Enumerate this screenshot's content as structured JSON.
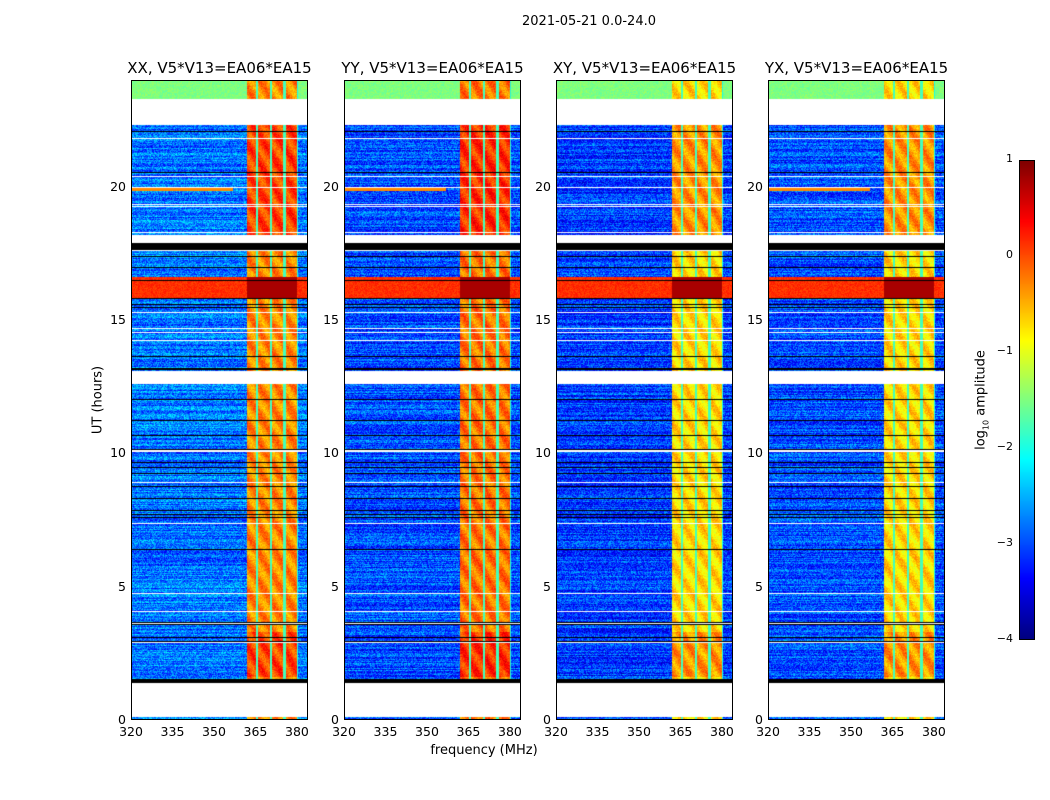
{
  "chart_data": {
    "type": "heatmap",
    "title": "2021-05-21 0.0-24.0",
    "xlabel": "frequency (MHz)",
    "ylabel": "UT (hours)",
    "xlim": [
      320,
      384
    ],
    "ylim": [
      0,
      24
    ],
    "xticks": [
      "320",
      "335",
      "350",
      "365",
      "380"
    ],
    "xtick_values": [
      320,
      335,
      350,
      365,
      380
    ],
    "yticks": [
      "0",
      "5",
      "10",
      "15",
      "20"
    ],
    "ytick_values": [
      0,
      5,
      10,
      15,
      20
    ],
    "colormap": "jet",
    "colorbar": {
      "label_main": "log",
      "label_sub": "10",
      "label_rest": " amplitude",
      "vmin": -4,
      "vmax": 1,
      "ticks": [
        "1",
        "0",
        "−1",
        "−2",
        "−3",
        "−4"
      ],
      "tick_values": [
        1,
        0,
        -1,
        -2,
        -3,
        -4
      ]
    },
    "panels": [
      {
        "title": "XX, V5*V13=EA06*EA15",
        "band_level": 0.0,
        "bg_level": -2.8
      },
      {
        "title": "YY, V5*V13=EA06*EA15",
        "band_level": 0.1,
        "bg_level": -3.0
      },
      {
        "title": "XY, V5*V13=EA06*EA15",
        "band_level": -0.4,
        "bg_level": -3.1
      },
      {
        "title": "YX, V5*V13=EA06*EA15",
        "band_level": -0.4,
        "bg_level": -3.0
      }
    ],
    "rfi_band_mhz": [
      362,
      380
    ],
    "subband_edges_mhz": [
      365.5,
      370.5,
      375.5
    ],
    "flagged_hours": [
      [
        0.1,
        1.4
      ],
      [
        12.6,
        13.1
      ],
      [
        17.6,
        18.2
      ],
      [
        22.3,
        23.3
      ]
    ],
    "strong_rfi_hours": [
      15.8,
      16.6
    ]
  }
}
